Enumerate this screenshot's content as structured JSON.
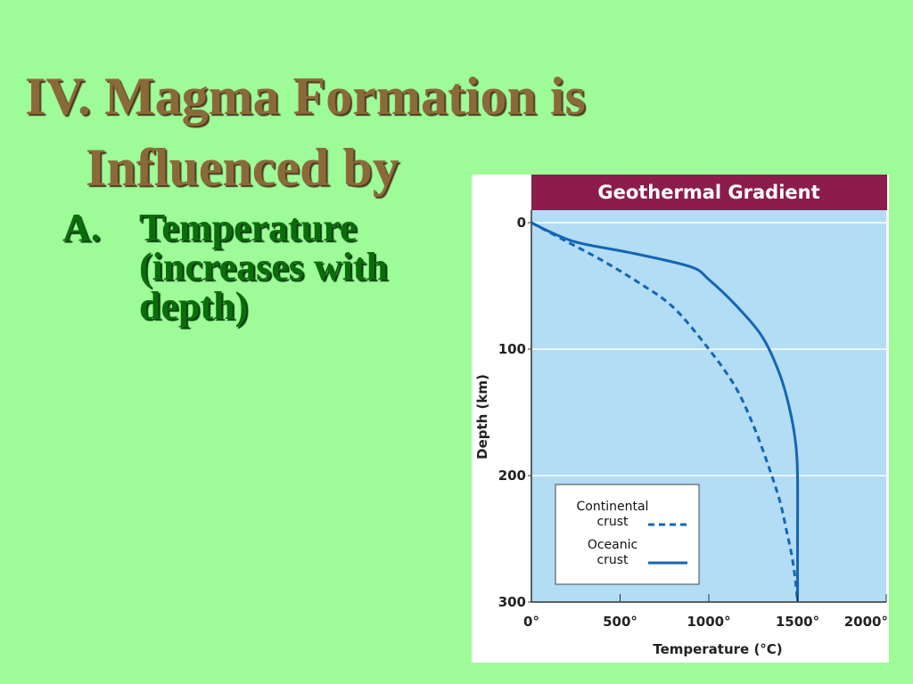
{
  "slide": {
    "title_line1": "IV. Magma Formation is",
    "title_line2": "Influenced by",
    "bullet_marker": "A.",
    "bullet_text": "Temperature (increases with depth)"
  },
  "colors": {
    "background": "#9dfc98",
    "title": "#8b6a3a",
    "bullet": "#0a6d0a",
    "header_bar": "#8c1c4c",
    "plot_bg": "#b3dcf5",
    "curve": "#1466b4"
  },
  "chart_data": {
    "type": "line",
    "title": "Geothermal Gradient",
    "xlabel": "Temperature (°C)",
    "ylabel": "Depth (km)",
    "xlim": [
      0,
      2000
    ],
    "ylim": [
      0,
      300
    ],
    "y_inverted": true,
    "grid": "horizontal",
    "x_ticks": [
      0,
      500,
      1000,
      1500,
      2000
    ],
    "x_tick_labels": [
      "0°",
      "500°",
      "1000°",
      "1500°",
      "2000°"
    ],
    "y_ticks": [
      0,
      100,
      200,
      300
    ],
    "y_tick_labels": [
      "0",
      "100",
      "200",
      "300"
    ],
    "legend_position": "bottom-left",
    "series": [
      {
        "name": "Continental crust",
        "style": "dashed",
        "x": [
          0,
          200,
          400,
          600,
          800,
          1000,
          1150,
          1250,
          1330,
          1400,
          1440,
          1470,
          1490,
          1500
        ],
        "y": [
          0,
          15,
          30,
          47,
          67,
          100,
          130,
          160,
          190,
          220,
          245,
          265,
          285,
          300
        ]
      },
      {
        "name": "Oceanic crust",
        "style": "solid",
        "x": [
          0,
          100,
          200,
          300,
          600,
          900,
          1000,
          1150,
          1300,
          1400,
          1460,
          1490,
          1500,
          1500,
          1500
        ],
        "y": [
          0,
          7,
          13,
          17,
          25,
          35,
          45,
          65,
          90,
          120,
          150,
          175,
          200,
          250,
          300
        ]
      }
    ],
    "legend": {
      "continental_line1": "Continental",
      "continental_line2": "crust",
      "oceanic_line1": "Oceanic",
      "oceanic_line2": "crust"
    }
  }
}
